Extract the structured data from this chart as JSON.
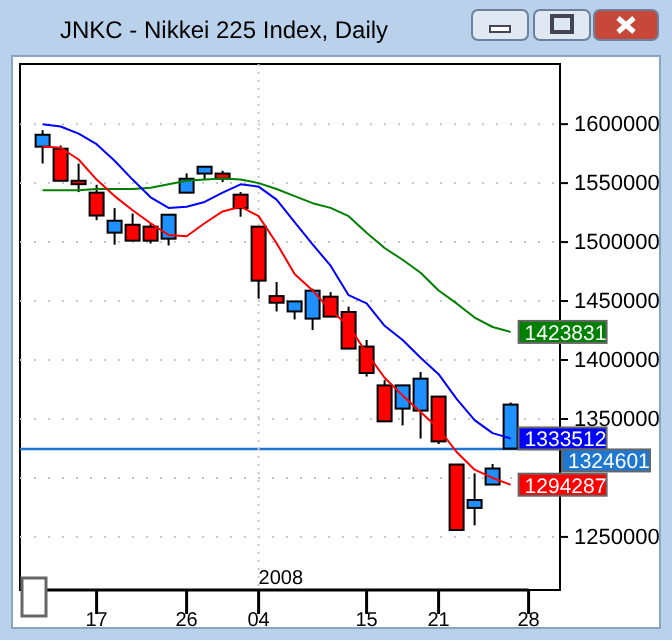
{
  "chart_data": {
    "type": "candlestick",
    "title": "JNKC - Nikkei 225 Index, Daily",
    "categories": [
      null,
      null,
      null,
      "17",
      null,
      null,
      null,
      null,
      "26",
      null,
      null,
      null,
      "04",
      null,
      null,
      null,
      null,
      null,
      "15",
      null,
      null,
      null,
      "21",
      null,
      null,
      null,
      null,
      "28"
    ],
    "ohlc": [
      [
        1580900,
        1594900,
        1566600,
        1591000
      ],
      [
        1579200,
        1581900,
        1551500,
        1552000
      ],
      [
        1552000,
        1566600,
        1542400,
        1549100
      ],
      [
        1541900,
        1548600,
        1518600,
        1522500
      ],
      [
        1508000,
        1528800,
        1497800,
        1518100
      ],
      [
        1514700,
        1524200,
        1501200,
        1501200
      ],
      [
        1513100,
        1515800,
        1498800,
        1501200
      ],
      [
        1502900,
        1523200,
        1497100,
        1523200
      ],
      [
        1541900,
        1558200,
        1541900,
        1553700
      ],
      [
        1558100,
        1563900,
        1552500,
        1563900
      ],
      [
        1558100,
        1560500,
        1550800,
        1553700
      ],
      [
        1540200,
        1542400,
        1521500,
        1528800
      ],
      [
        1513100,
        1513100,
        1452000,
        1467300
      ],
      [
        1454200,
        1466100,
        1441200,
        1448600
      ],
      [
        1441200,
        1449700,
        1434400,
        1449700
      ],
      [
        1435100,
        1460500,
        1425400,
        1458800
      ],
      [
        1453700,
        1457600,
        1436800,
        1436800
      ],
      [
        1440700,
        1445300,
        1409700,
        1409700
      ],
      [
        1411400,
        1417000,
        1386000,
        1389000
      ],
      [
        1378500,
        1383000,
        1348000,
        1348000
      ],
      [
        1358800,
        1378500,
        1344600,
        1378500
      ],
      [
        1357100,
        1389800,
        1333400,
        1384200
      ],
      [
        1369000,
        1369000,
        1328800,
        1331000
      ],
      [
        1311400,
        1311400,
        1255900,
        1255900
      ],
      [
        1274600,
        1303900,
        1259800,
        1281300
      ],
      [
        1294400,
        1311900,
        1294400,
        1308000
      ],
      [
        1324900,
        1363900,
        1324900,
        1362200
      ],
      null
    ],
    "series": [
      {
        "type": "line",
        "color": "#008000",
        "values": [
          1544000,
          1544000,
          1544000,
          1545000,
          1545000,
          1545000,
          1546000,
          1549000,
          1552000,
          1553000,
          1554000,
          1553000,
          1550000,
          1545000,
          1539000,
          1533000,
          1529000,
          1522000,
          1508000,
          1495000,
          1485000,
          1474000,
          1459000,
          1448000,
          1436000,
          1428000,
          1423831,
          null
        ],
        "value_labels": [
          null,
          null,
          null,
          null,
          null,
          null,
          null,
          null,
          null,
          null,
          null,
          null,
          null,
          null,
          null,
          null,
          null,
          null,
          null,
          null,
          null,
          null,
          null,
          null,
          null,
          null,
          "1423831",
          null
        ]
      },
      {
        "type": "line",
        "color": "#0000ff",
        "values": [
          1600000,
          1598000,
          1592000,
          1583000,
          1569000,
          1553000,
          1538000,
          1529000,
          1530000,
          1534000,
          1542000,
          1549000,
          1547000,
          1536000,
          1517000,
          1498000,
          1480000,
          1455000,
          1448000,
          1429000,
          1417000,
          1402000,
          1388000,
          1367000,
          1349000,
          1338000,
          1333512,
          null
        ],
        "value_labels": [
          null,
          null,
          null,
          null,
          null,
          null,
          null,
          null,
          null,
          null,
          null,
          null,
          null,
          null,
          null,
          null,
          null,
          null,
          null,
          null,
          null,
          null,
          null,
          null,
          null,
          null,
          "1333512",
          null
        ]
      },
      {
        "type": "line",
        "color": "#ff0000",
        "values": [
          1581000,
          1580000,
          1570000,
          1553000,
          1539000,
          1527000,
          1516000,
          1506000,
          1505000,
          1516000,
          1526000,
          1530000,
          1522000,
          1499000,
          1473000,
          1459000,
          1442000,
          1429000,
          1406000,
          1385000,
          1370000,
          1356000,
          1342000,
          1322000,
          1307000,
          1300000,
          1294287,
          null
        ],
        "value_labels": [
          null,
          null,
          null,
          null,
          null,
          null,
          null,
          null,
          null,
          null,
          null,
          null,
          null,
          null,
          null,
          null,
          null,
          null,
          null,
          null,
          null,
          null,
          null,
          null,
          null,
          null,
          "1294287",
          null
        ]
      }
    ],
    "ylim": [
      1205000,
      1651000
    ],
    "yticks": [
      1250000,
      {
        "value": 1300000,
        "label": null
      },
      1350000,
      1400000,
      1450000,
      1500000,
      1550000,
      1600000
    ],
    "grid": "y",
    "ref_lines": [
      {
        "axis": "y",
        "value": 1324601,
        "label": "1324601",
        "color": "#1e78d2"
      },
      {
        "axis": "x",
        "value": "04",
        "label": null,
        "color": "#c8c8c8",
        "line_style": "dotted"
      }
    ],
    "annotations": [
      {
        "text": "2008",
        "x": "04"
      }
    ]
  }
}
